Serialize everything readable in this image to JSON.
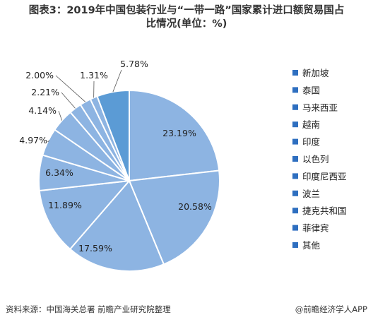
{
  "title": {
    "line1": "图表3：2019年中国包装行业与“一带一路”国家累计进口额贸易国占",
    "line2": "比情况(单位：%)"
  },
  "footer": {
    "source": "资料来源：中国海关总署 前瞻产业研究院整理",
    "brand": "@前瞻经济学人APP"
  },
  "colors": {
    "slice": "#8db4e2",
    "slice_alt": "#5b9bd5",
    "legend_marker": "#2e6fc0",
    "divider": "#ffffff"
  },
  "chart_data": {
    "type": "pie",
    "categories": [
      "新加坡",
      "泰国",
      "马来西亚",
      "越南",
      "印度",
      "以色列",
      "印度尼西亚",
      "波兰",
      "捷克共和国",
      "菲律宾",
      "其他"
    ],
    "values": [
      23.19,
      20.58,
      17.59,
      11.89,
      6.34,
      4.97,
      4.14,
      2.21,
      2.0,
      1.31,
      5.78
    ],
    "labels": [
      "23.19%",
      "20.58%",
      "17.59%",
      "11.89%",
      "6.34%",
      "4.97%",
      "4.14%",
      "2.21%",
      "2.00%",
      "1.31%",
      "5.78%"
    ],
    "unit": "%",
    "legend_position": "right"
  }
}
